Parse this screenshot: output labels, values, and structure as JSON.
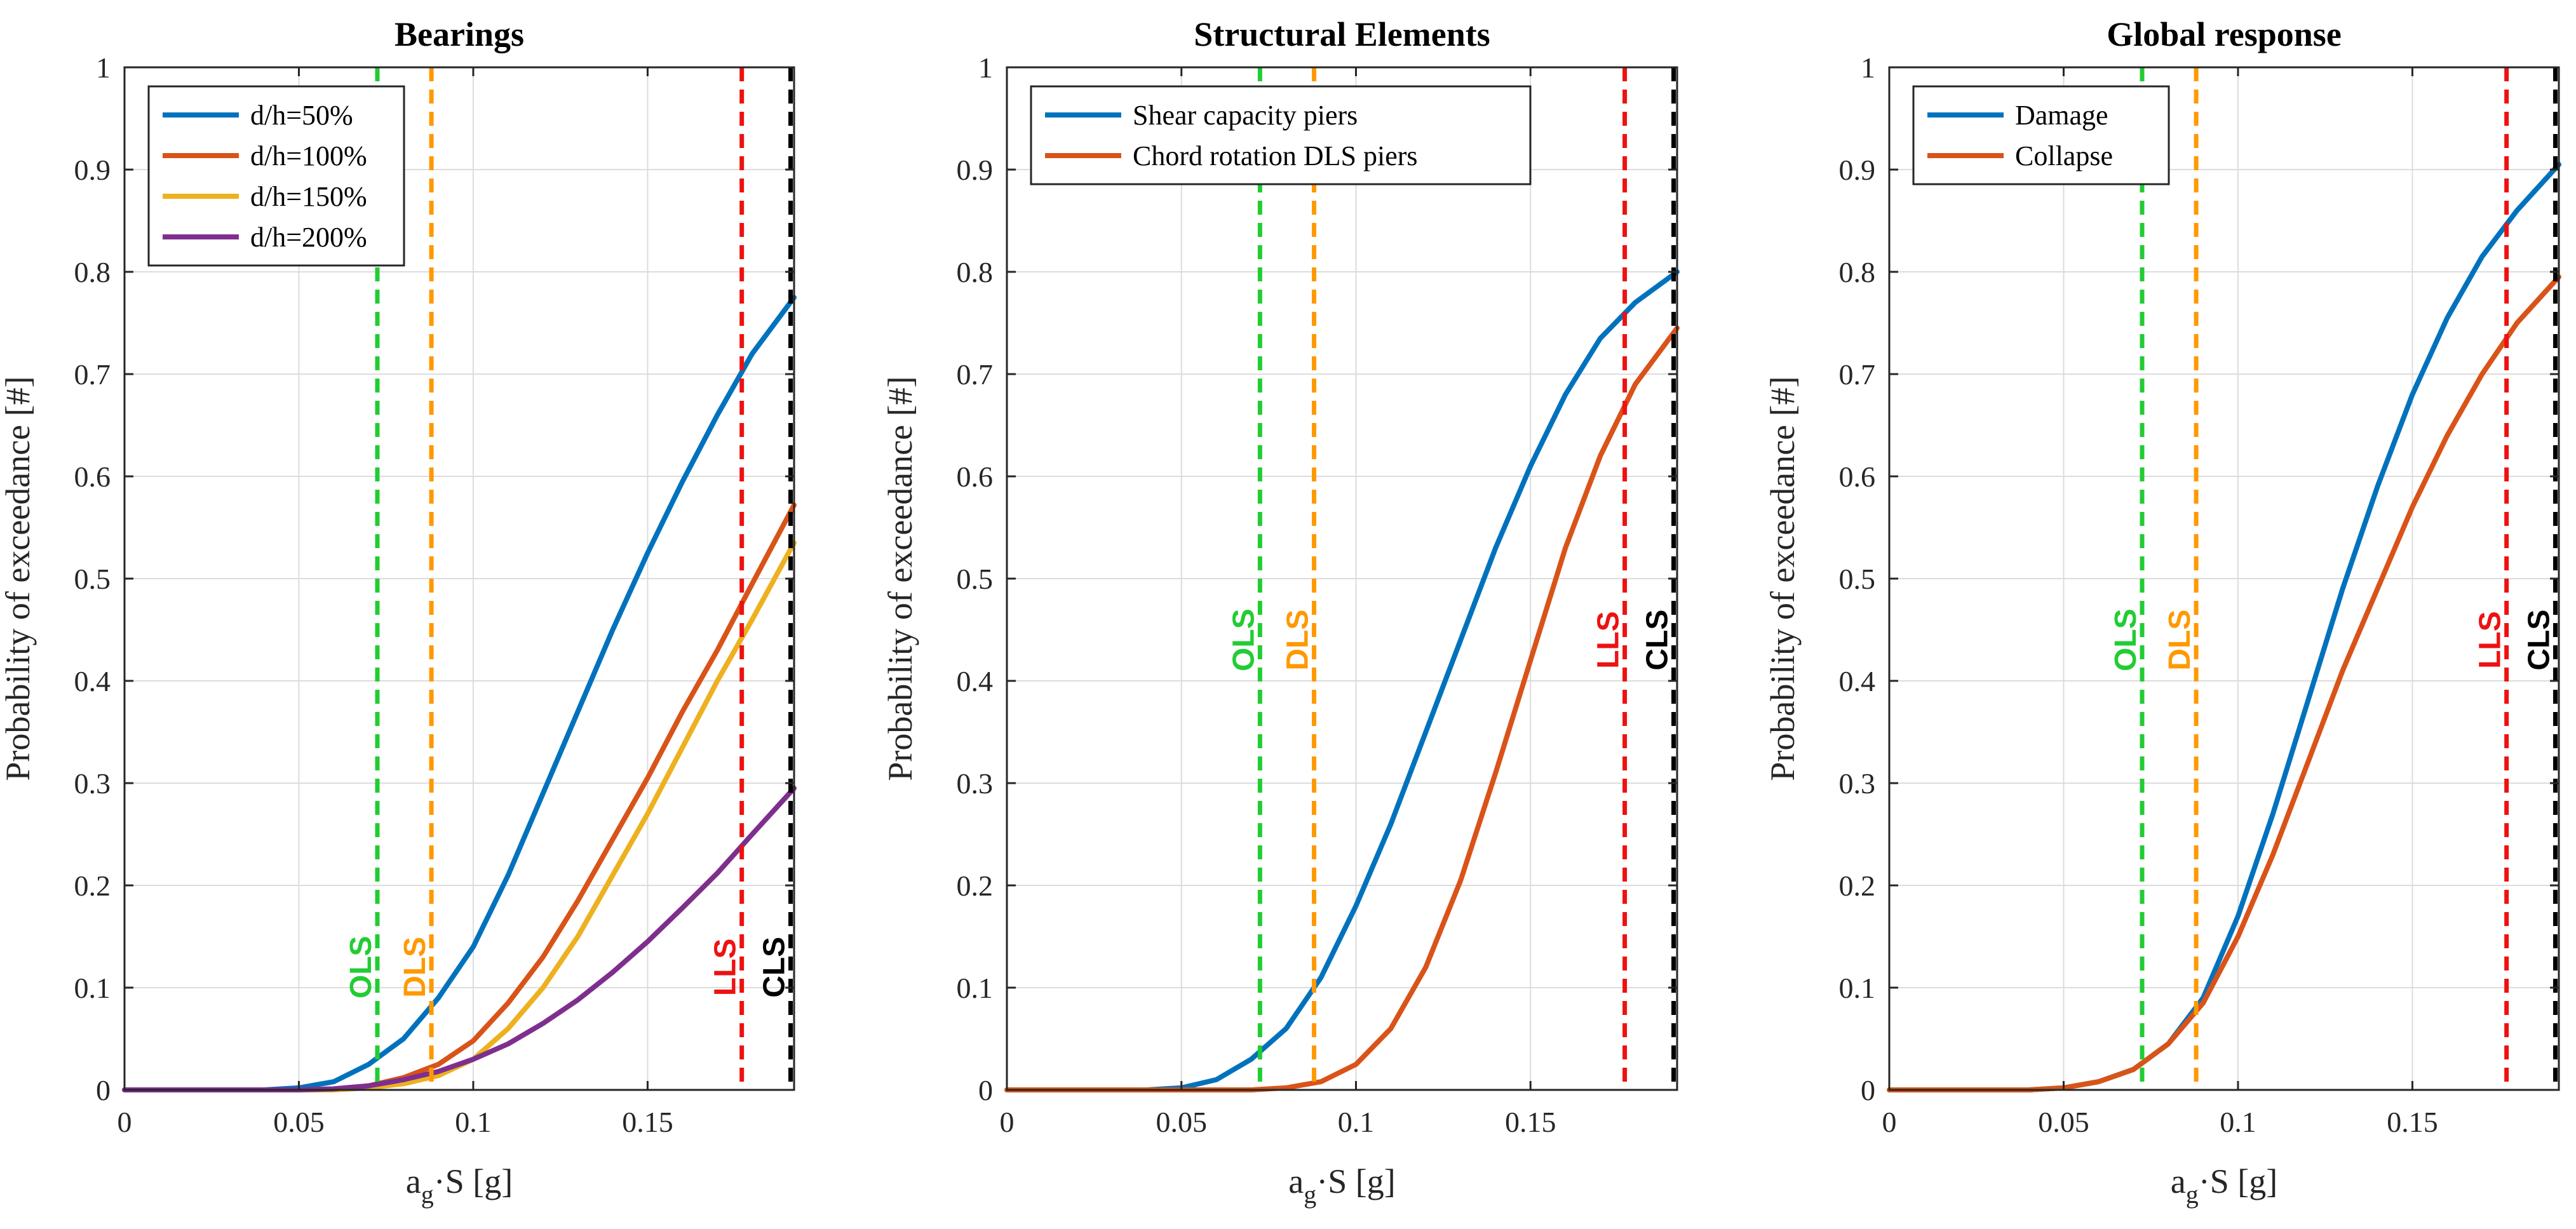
{
  "colors": {
    "blue": "#0072BD",
    "orange": "#D95319",
    "yellow": "#EDB120",
    "purple": "#7E2F8E",
    "ols": "#22CC33",
    "dls": "#FF9900",
    "lls": "#EE1111",
    "cls": "#000000"
  },
  "chart_data": [
    {
      "type": "line",
      "title": "Bearings",
      "xlabel": {
        "main": "a",
        "sub": "g",
        "rest": "·S [g]"
      },
      "ylabel": "Probability of exceedance [#]",
      "xlim": [
        0,
        0.192
      ],
      "ylim": [
        0,
        1
      ],
      "xticks": [
        0,
        0.05,
        0.1,
        0.15
      ],
      "xtick_labels": [
        "0",
        "0.05",
        "0.1",
        "0.15"
      ],
      "yticks": [
        0,
        0.1,
        0.2,
        0.3,
        0.4,
        0.5,
        0.6,
        0.7,
        0.8,
        0.9,
        1
      ],
      "ytick_labels": [
        "0",
        "0.1",
        "0.2",
        "0.3",
        "0.4",
        "0.5",
        "0.6",
        "0.7",
        "0.8",
        "0.9",
        "1"
      ],
      "grid": true,
      "legend_position": "top-left",
      "x": [
        0,
        0.02,
        0.04,
        0.05,
        0.06,
        0.07,
        0.08,
        0.09,
        0.1,
        0.11,
        0.12,
        0.13,
        0.14,
        0.15,
        0.16,
        0.17,
        0.18,
        0.192
      ],
      "series": [
        {
          "name": "d/h=50%",
          "color": "#0072BD",
          "values": [
            0,
            0,
            0,
            0.002,
            0.008,
            0.025,
            0.05,
            0.09,
            0.14,
            0.21,
            0.29,
            0.37,
            0.45,
            0.525,
            0.595,
            0.66,
            0.72,
            0.775
          ]
        },
        {
          "name": "d/h=100%",
          "color": "#D95319",
          "values": [
            0,
            0,
            0,
            0,
            0.001,
            0.004,
            0.012,
            0.025,
            0.048,
            0.085,
            0.13,
            0.185,
            0.245,
            0.305,
            0.37,
            0.43,
            0.495,
            0.572
          ]
        },
        {
          "name": "d/h=150%",
          "color": "#EDB120",
          "values": [
            0,
            0,
            0,
            0,
            0,
            0.002,
            0.006,
            0.014,
            0.03,
            0.06,
            0.1,
            0.15,
            0.21,
            0.27,
            0.335,
            0.4,
            0.46,
            0.535
          ]
        },
        {
          "name": "d/h=200%",
          "color": "#7E2F8E",
          "values": [
            0,
            0,
            0,
            0,
            0.001,
            0.004,
            0.01,
            0.018,
            0.03,
            0.045,
            0.065,
            0.088,
            0.115,
            0.145,
            0.178,
            0.212,
            0.25,
            0.295
          ]
        }
      ],
      "limit_states": [
        {
          "label": "OLS",
          "x": 0.0725,
          "color": "#22CC33",
          "label_y": 0.12
        },
        {
          "label": "DLS",
          "x": 0.088,
          "color": "#FF9900",
          "label_y": 0.12
        },
        {
          "label": "LLS",
          "x": 0.177,
          "color": "#EE1111",
          "label_y": 0.12
        },
        {
          "label": "CLS",
          "x": 0.191,
          "color": "#000000",
          "label_y": 0.12
        }
      ]
    },
    {
      "type": "line",
      "title": "Structural Elements",
      "xlabel": {
        "main": "a",
        "sub": "g",
        "rest": "·S [g]"
      },
      "ylabel": "Probability of exceedance [#]",
      "xlim": [
        0,
        0.192
      ],
      "ylim": [
        0,
        1
      ],
      "xticks": [
        0,
        0.05,
        0.1,
        0.15
      ],
      "xtick_labels": [
        "0",
        "0.05",
        "0.1",
        "0.15"
      ],
      "yticks": [
        0,
        0.1,
        0.2,
        0.3,
        0.4,
        0.5,
        0.6,
        0.7,
        0.8,
        0.9,
        1
      ],
      "ytick_labels": [
        "0",
        "0.1",
        "0.2",
        "0.3",
        "0.4",
        "0.5",
        "0.6",
        "0.7",
        "0.8",
        "0.9",
        "1"
      ],
      "grid": true,
      "legend_position": "top-left",
      "x": [
        0,
        0.04,
        0.05,
        0.06,
        0.07,
        0.08,
        0.09,
        0.1,
        0.11,
        0.12,
        0.13,
        0.14,
        0.15,
        0.16,
        0.17,
        0.18,
        0.192
      ],
      "series": [
        {
          "name": "Shear capacity piers",
          "color": "#0072BD",
          "values": [
            0,
            0,
            0.002,
            0.01,
            0.03,
            0.06,
            0.11,
            0.18,
            0.26,
            0.35,
            0.44,
            0.53,
            0.61,
            0.68,
            0.735,
            0.77,
            0.8
          ]
        },
        {
          "name": "Chord rotation DLS piers",
          "color": "#D95319",
          "values": [
            0,
            0,
            0,
            0,
            0,
            0.002,
            0.008,
            0.025,
            0.06,
            0.12,
            0.205,
            0.31,
            0.42,
            0.53,
            0.62,
            0.69,
            0.745
          ]
        }
      ],
      "limit_states": [
        {
          "label": "OLS",
          "x": 0.0725,
          "color": "#22CC33",
          "label_y": 0.44
        },
        {
          "label": "DLS",
          "x": 0.088,
          "color": "#FF9900",
          "label_y": 0.44
        },
        {
          "label": "LLS",
          "x": 0.177,
          "color": "#EE1111",
          "label_y": 0.44
        },
        {
          "label": "CLS",
          "x": 0.191,
          "color": "#000000",
          "label_y": 0.44
        }
      ]
    },
    {
      "type": "line",
      "title": "Global response",
      "xlabel": {
        "main": "a",
        "sub": "g",
        "rest": "·S [g]"
      },
      "ylabel": "Probability of exceedance [#]",
      "xlim": [
        0,
        0.192
      ],
      "ylim": [
        0,
        1
      ],
      "xticks": [
        0,
        0.05,
        0.1,
        0.15
      ],
      "xtick_labels": [
        "0",
        "0.05",
        "0.1",
        "0.15"
      ],
      "yticks": [
        0,
        0.1,
        0.2,
        0.3,
        0.4,
        0.5,
        0.6,
        0.7,
        0.8,
        0.9,
        1
      ],
      "ytick_labels": [
        "0",
        "0.1",
        "0.2",
        "0.3",
        "0.4",
        "0.5",
        "0.6",
        "0.7",
        "0.8",
        "0.9",
        "1"
      ],
      "grid": true,
      "legend_position": "top-left",
      "x": [
        0,
        0.04,
        0.05,
        0.06,
        0.07,
        0.08,
        0.09,
        0.1,
        0.11,
        0.12,
        0.13,
        0.14,
        0.15,
        0.16,
        0.17,
        0.18,
        0.192
      ],
      "series": [
        {
          "name": "Damage",
          "color": "#0072BD",
          "values": [
            0,
            0,
            0.002,
            0.008,
            0.02,
            0.045,
            0.09,
            0.17,
            0.27,
            0.38,
            0.49,
            0.59,
            0.68,
            0.755,
            0.815,
            0.86,
            0.905
          ]
        },
        {
          "name": "Collapse",
          "color": "#D95319",
          "values": [
            0,
            0,
            0.002,
            0.008,
            0.02,
            0.045,
            0.085,
            0.15,
            0.23,
            0.32,
            0.41,
            0.49,
            0.57,
            0.64,
            0.7,
            0.75,
            0.795
          ]
        }
      ],
      "limit_states": [
        {
          "label": "OLS",
          "x": 0.0725,
          "color": "#22CC33",
          "label_y": 0.44
        },
        {
          "label": "DLS",
          "x": 0.088,
          "color": "#FF9900",
          "label_y": 0.44
        },
        {
          "label": "LLS",
          "x": 0.177,
          "color": "#EE1111",
          "label_y": 0.44
        },
        {
          "label": "CLS",
          "x": 0.191,
          "color": "#000000",
          "label_y": 0.44
        }
      ]
    }
  ]
}
